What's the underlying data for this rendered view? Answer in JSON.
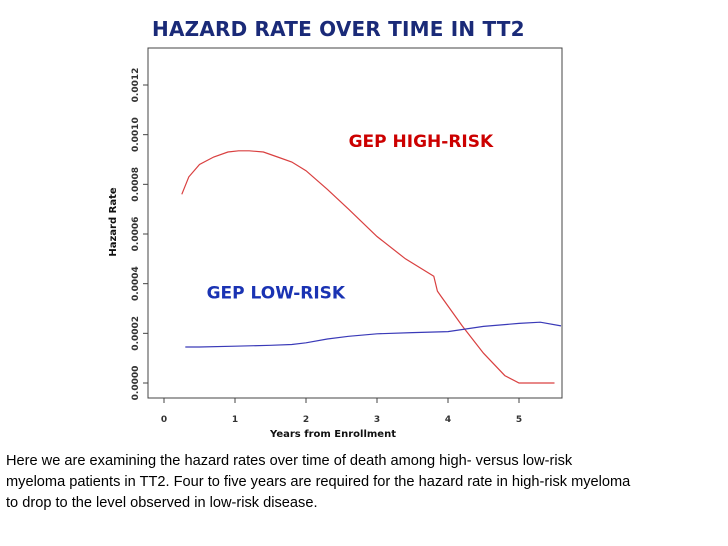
{
  "chart_data": {
    "type": "line",
    "title": "HAZARD RATE OVER TIME IN TT2",
    "xlabel": "Years from Enrollment",
    "ylabel": "Hazard Rate",
    "xlim": [
      -0.1,
      5.6
    ],
    "ylim": [
      0.0,
      0.0013
    ],
    "x_ticks": [
      0,
      1,
      2,
      3,
      4,
      5
    ],
    "x_tick_labels": [
      "0",
      "1",
      "2",
      "3",
      "4",
      "5"
    ],
    "y_ticks": [
      0.0,
      0.0002,
      0.0004,
      0.0006,
      0.0008,
      0.001,
      0.0012
    ],
    "y_tick_labels": [
      "0.0000",
      "0.0002",
      "0.0004",
      "0.0006",
      "0.0008",
      "0.0010",
      "0.0012"
    ],
    "series": [
      {
        "name": "GEP HIGH-RISK",
        "color": "#d94040",
        "x": [
          0.25,
          0.35,
          0.5,
          0.7,
          0.9,
          1.05,
          1.2,
          1.4,
          1.6,
          1.8,
          2.0,
          2.3,
          2.6,
          3.0,
          3.4,
          3.8,
          3.85,
          3.9,
          4.2,
          4.5,
          4.8,
          5.0,
          5.2,
          5.5
        ],
        "y": [
          0.00076,
          0.00083,
          0.00088,
          0.00091,
          0.00093,
          0.000935,
          0.000935,
          0.00093,
          0.00091,
          0.00089,
          0.000855,
          0.00078,
          0.0007,
          0.00059,
          0.0005,
          0.00043,
          0.00037,
          0.00035,
          0.00023,
          0.00012,
          3e-05,
          0.0,
          0.0,
          0.0
        ]
      },
      {
        "name": "GEP LOW-RISK",
        "color": "#3a3ab8",
        "x": [
          0.3,
          0.5,
          1.0,
          1.5,
          1.8,
          2.0,
          2.3,
          2.6,
          3.0,
          3.5,
          4.0,
          4.5,
          5.0,
          5.3,
          5.6
        ],
        "y": [
          0.000145,
          0.000145,
          0.000148,
          0.000152,
          0.000155,
          0.000162,
          0.000177,
          0.000188,
          0.000198,
          0.000203,
          0.000207,
          0.000228,
          0.00024,
          0.000245,
          0.00023
        ]
      }
    ],
    "annotations": [
      {
        "text": "GEP HIGH-RISK",
        "color": "#cc0000",
        "x": 2.6,
        "y": 0.00095
      },
      {
        "text": "GEP LOW-RISK",
        "color": "#1a33b3",
        "x": 0.6,
        "y": 0.00034
      }
    ]
  },
  "caption": {
    "lines": [
      "Here we are examining the hazard rates over time of death among high- versus low-risk",
      "myeloma patients in TT2. Four to five years are required for the hazard rate in high-risk myeloma",
      "to drop to the level observed in low-risk disease."
    ]
  }
}
